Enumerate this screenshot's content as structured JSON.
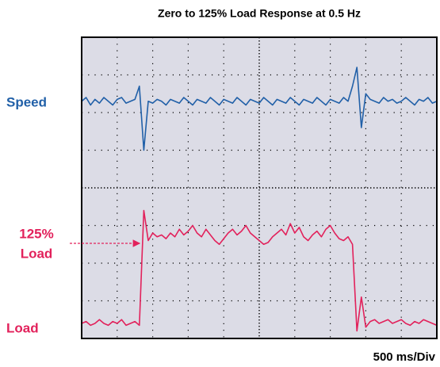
{
  "chart_data": {
    "type": "line",
    "title": "Zero to 125% Load Response at 0.5 Hz",
    "xlabel": "500 ms/Div",
    "annotations": [
      {
        "lines": [
          "125%",
          "Load"
        ]
      }
    ],
    "xlim": [
      0,
      10
    ],
    "ylim": [
      0,
      8
    ],
    "xticks": [
      1,
      2,
      3,
      4,
      5,
      6,
      7,
      8,
      9
    ],
    "yticks": [
      1,
      2,
      3,
      4,
      5,
      6,
      7
    ],
    "grid": true,
    "x": [
      0,
      0.125,
      0.25,
      0.375,
      0.5,
      0.625,
      0.75,
      0.875,
      1,
      1.125,
      1.25,
      1.375,
      1.5,
      1.625,
      1.75,
      1.875,
      2,
      2.125,
      2.25,
      2.375,
      2.5,
      2.625,
      2.75,
      2.875,
      3,
      3.125,
      3.25,
      3.375,
      3.5,
      3.625,
      3.75,
      3.875,
      4,
      4.125,
      4.25,
      4.375,
      4.5,
      4.625,
      4.75,
      4.875,
      5,
      5.125,
      5.25,
      5.375,
      5.5,
      5.625,
      5.75,
      5.875,
      6,
      6.125,
      6.25,
      6.375,
      6.5,
      6.625,
      6.75,
      6.875,
      7,
      7.125,
      7.25,
      7.375,
      7.5,
      7.625,
      7.75,
      7.875,
      8,
      8.125,
      8.25,
      8.375,
      8.5,
      8.625,
      8.75,
      8.875,
      9,
      9.125,
      9.25,
      9.375,
      9.5,
      9.625,
      9.75,
      9.875,
      10
    ],
    "series": [
      {
        "name": "Speed",
        "color": "#2160a8",
        "values": [
          6.3,
          6.4,
          6.2,
          6.35,
          6.25,
          6.4,
          6.3,
          6.2,
          6.35,
          6.4,
          6.25,
          6.3,
          6.35,
          6.7,
          5.0,
          6.3,
          6.25,
          6.35,
          6.3,
          6.2,
          6.35,
          6.3,
          6.25,
          6.4,
          6.3,
          6.2,
          6.35,
          6.3,
          6.25,
          6.4,
          6.3,
          6.2,
          6.35,
          6.3,
          6.25,
          6.4,
          6.3,
          6.2,
          6.35,
          6.3,
          6.25,
          6.4,
          6.3,
          6.2,
          6.35,
          6.3,
          6.25,
          6.4,
          6.3,
          6.2,
          6.35,
          6.3,
          6.25,
          6.4,
          6.3,
          6.2,
          6.35,
          6.3,
          6.25,
          6.4,
          6.3,
          6.7,
          7.2,
          5.6,
          6.5,
          6.35,
          6.3,
          6.25,
          6.4,
          6.3,
          6.35,
          6.25,
          6.3,
          6.4,
          6.3,
          6.2,
          6.35,
          6.3,
          6.4,
          6.25,
          6.3
        ]
      },
      {
        "name": "Load",
        "color": "#e2215b",
        "values": [
          0.4,
          0.45,
          0.35,
          0.4,
          0.5,
          0.4,
          0.35,
          0.45,
          0.4,
          0.5,
          0.35,
          0.4,
          0.45,
          0.35,
          3.4,
          2.6,
          2.8,
          2.7,
          2.75,
          2.65,
          2.8,
          2.7,
          2.9,
          2.75,
          2.85,
          3.0,
          2.8,
          2.7,
          2.9,
          2.75,
          2.6,
          2.5,
          2.65,
          2.8,
          2.9,
          2.75,
          2.85,
          3.0,
          2.8,
          2.7,
          2.6,
          2.5,
          2.55,
          2.7,
          2.8,
          2.9,
          2.75,
          3.05,
          2.8,
          2.95,
          2.7,
          2.6,
          2.75,
          2.85,
          2.7,
          2.9,
          3.0,
          2.8,
          2.65,
          2.6,
          2.7,
          2.5,
          0.2,
          1.1,
          0.3,
          0.45,
          0.5,
          0.4,
          0.45,
          0.5,
          0.4,
          0.45,
          0.5,
          0.4,
          0.35,
          0.45,
          0.4,
          0.5,
          0.45,
          0.4,
          0.35
        ]
      }
    ]
  }
}
